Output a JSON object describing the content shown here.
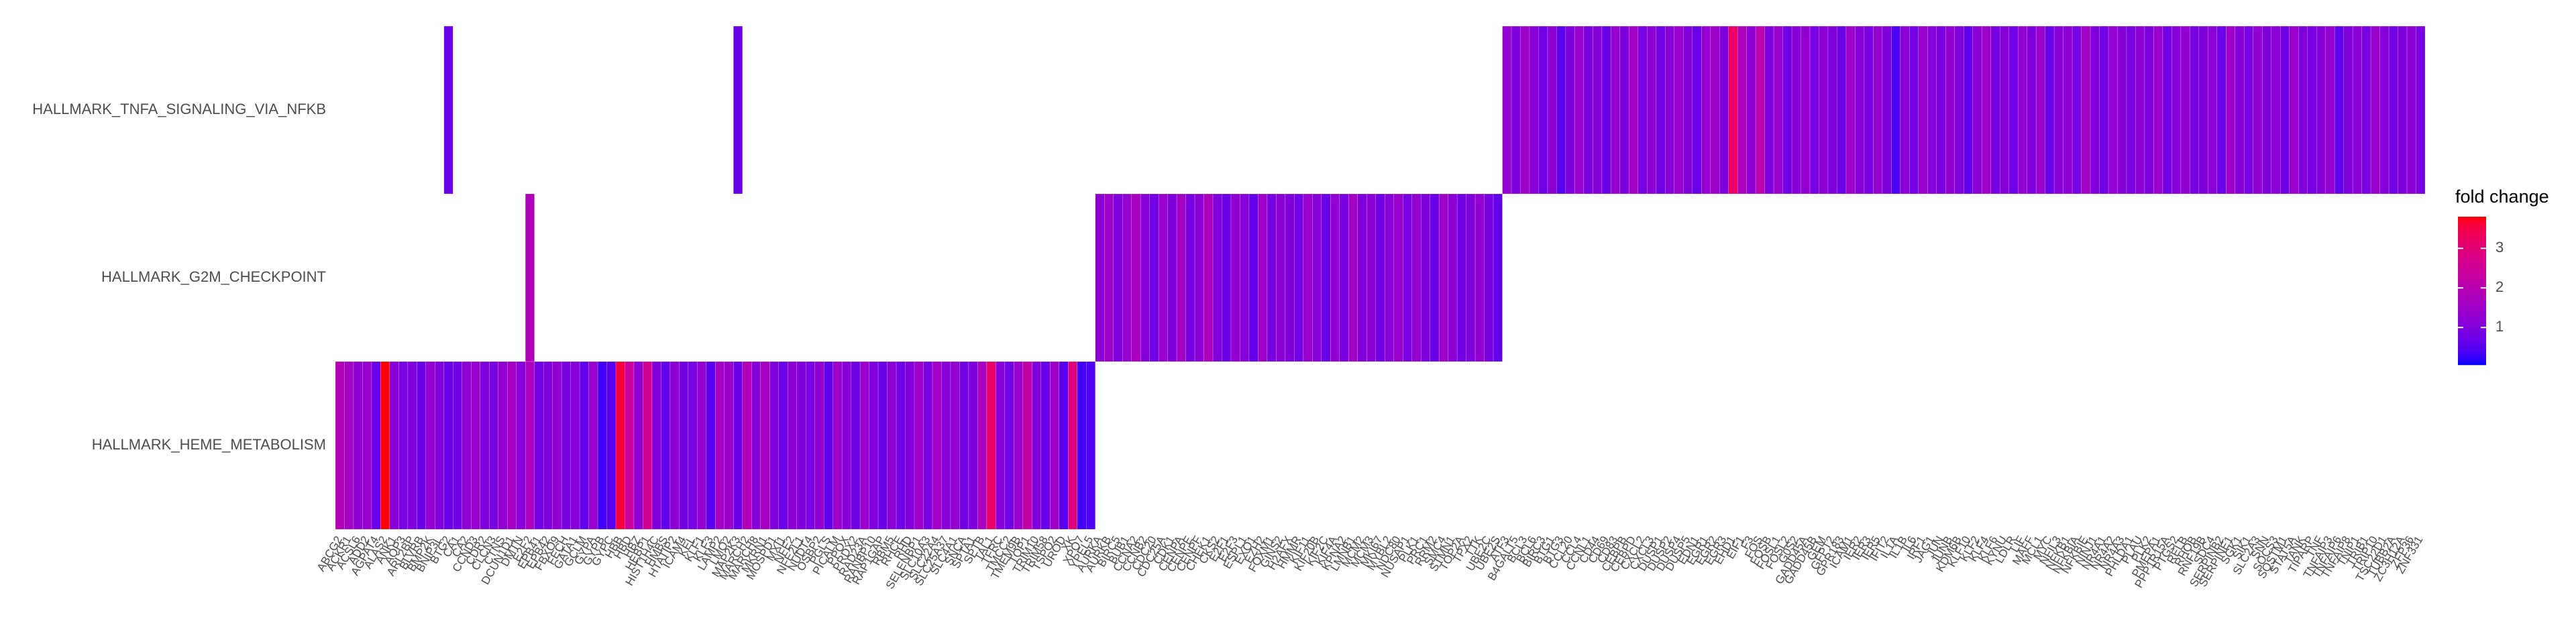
{
  "chart_data": {
    "type": "heatmap",
    "legend_title": "fold change",
    "clim": [
      0.05,
      3.8
    ],
    "cticks": [
      1,
      2,
      3
    ],
    "colors": [
      "#0000ff",
      "#ff0000"
    ],
    "categories": [
      "ABCG2",
      "ACKR1",
      "ACSL6",
      "ADD2",
      "AGPAT4",
      "ALAS2",
      "ANK1",
      "AQP3",
      "ARL2BP",
      "BLVRB",
      "BMP2K",
      "BNIP3L",
      "BTG2",
      "CA1",
      "CA2",
      "CCND3",
      "CDR2",
      "CLCN3",
      "CTNS",
      "DCUN1D1",
      "DMTN",
      "E2F2",
      "EPB41",
      "EPB42",
      "FBXO9",
      "FECH",
      "GATA1",
      "GCLM",
      "GYPA",
      "GYPB",
      "GYPC",
      "HBB",
      "HBD",
      "HBZ",
      "HEBP1",
      "HIST1H4C",
      "HMBS",
      "HTATIP2",
      "ICAM4",
      "KEL",
      "KLF1",
      "KLF3",
      "LAMP2",
      "LMO2",
      "MAP2K3",
      "MARCH2",
      "MARCH8",
      "MKRN1",
      "MOSPD1",
      "MXI1",
      "NFE2",
      "NFE2L1",
      "NUDT4",
      "OSBP2",
      "PGLS",
      "PICALM",
      "PPOX",
      "PRDX2",
      "RAD23A",
      "RANBP10",
      "RAP1GAP",
      "RBM5",
      "RHCE",
      "RHD",
      "SELENBP1",
      "SLC10A3",
      "SLC22A4",
      "SLC25A37",
      "SLC4A1",
      "SNCA",
      "SPTA1",
      "SPTB",
      "TAL1",
      "TFRC",
      "TMCC2",
      "TMEM9B",
      "TOP1",
      "TRIM10",
      "TRIM58",
      "TSPO2",
      "UROD",
      "XK",
      "XPO7",
      "YPEL5",
      "AURKA",
      "AURKB",
      "BIRC5",
      "BUB1",
      "CCNA2",
      "CCNB2",
      "CDC20",
      "CDC25A",
      "CDK1",
      "CENPA",
      "CENPE",
      "CENPF",
      "CHEK1",
      "CKS2",
      "E2F1",
      "E2F3",
      "ESPL1",
      "EXO1",
      "EZH2",
      "FOXM1",
      "GINS2",
      "H2AFX",
      "HMMR",
      "KIF11",
      "KIF20B",
      "KIF2C",
      "KIF4A",
      "KPNA2",
      "LMNB1",
      "MCM2",
      "MCM3",
      "MKI67",
      "MYBL2",
      "NDC80",
      "NUSAP1",
      "PLK1",
      "PRC1",
      "RRM2",
      "SMC4",
      "STMN1",
      "TOP2A",
      "TPX2",
      "TTK",
      "UBE2C",
      "UBE2S",
      "ATF3",
      "B4GALT5",
      "BCL3",
      "BCL6",
      "BIRC3",
      "BTG1",
      "BTG3",
      "CCL20",
      "CCL4",
      "CCNL1",
      "CD44",
      "CD69",
      "CD83",
      "CEBPB",
      "CEBPD",
      "CXCL2",
      "CXCL3",
      "DUSP1",
      "DUSP2",
      "DUSP4",
      "DUSP5",
      "EDN1",
      "EGR1",
      "EGR2",
      "EGR3",
      "EHD1",
      "EIF1",
      "F3",
      "FOS",
      "FOSB",
      "FOSL1",
      "FOSL2",
      "G0S2",
      "GADD45A",
      "GADD45B",
      "GEM",
      "GFPT2",
      "GPR183",
      "ICAM1",
      "IER2",
      "IER3",
      "IER5",
      "IFIT2",
      "IL1A",
      "IL1B",
      "IL6",
      "IRF1",
      "JAG1",
      "JUN",
      "JUNB",
      "KDM6B",
      "KLF10",
      "KLF2",
      "KLF4",
      "KLF6",
      "KYNU",
      "LDLR",
      "LIF",
      "MAFF",
      "MCL1",
      "MYC",
      "NFIL3",
      "NFKB1",
      "NFKBIA",
      "NFKBIE",
      "NINJ1",
      "NR4A1",
      "NR4A2",
      "NR4A3",
      "PHLDA1",
      "PLAU",
      "PLK2",
      "PMEPA1",
      "PPP1R15A",
      "PTGS2",
      "RELB",
      "RHOB",
      "RNF19B",
      "SDC4",
      "SERPINB2",
      "SERPINE1",
      "SGK1",
      "SIK1",
      "SLC2A3",
      "SNN",
      "SOCS3",
      "SQSTM1",
      "STAT5A",
      "TANK",
      "TIPARP",
      "TNF",
      "TNFAIP3",
      "TNFAIP6",
      "TNFAIP8",
      "TNIP1",
      "TRIB1",
      "TRIP10",
      "TSC22D1",
      "TUBB2A",
      "ZC3H12A",
      "ZFP36",
      "ZNF331"
    ],
    "series": [
      {
        "name": "HALLMARK_TNFA_SIGNALING_VIA_NFKB",
        "values": [
          null,
          null,
          null,
          null,
          null,
          null,
          null,
          null,
          null,
          null,
          null,
          null,
          0.7,
          null,
          null,
          null,
          null,
          null,
          null,
          null,
          null,
          null,
          null,
          null,
          null,
          null,
          null,
          null,
          null,
          null,
          null,
          null,
          null,
          null,
          null,
          null,
          null,
          null,
          null,
          null,
          null,
          null,
          null,
          null,
          0.7,
          null,
          null,
          null,
          null,
          null,
          null,
          null,
          null,
          null,
          null,
          null,
          null,
          null,
          null,
          null,
          null,
          null,
          null,
          null,
          null,
          null,
          null,
          null,
          null,
          null,
          null,
          null,
          null,
          null,
          null,
          null,
          null,
          null,
          null,
          null,
          null,
          null,
          null,
          null,
          null,
          null,
          null,
          null,
          null,
          null,
          null,
          null,
          null,
          null,
          null,
          null,
          null,
          null,
          null,
          null,
          null,
          null,
          null,
          null,
          null,
          null,
          null,
          null,
          null,
          null,
          null,
          null,
          null,
          null,
          null,
          null,
          null,
          null,
          null,
          null,
          null,
          null,
          null,
          null,
          null,
          null,
          null,
          null,
          null,
          1.3,
          1.0,
          1.5,
          1.1,
          0.8,
          1.2,
          0.5,
          1.0,
          1.4,
          0.9,
          1.1,
          0.7,
          1.3,
          1.0,
          1.6,
          0.9,
          1.2,
          0.8,
          1.1,
          1.4,
          1.0,
          0.7,
          1.3,
          1.5,
          1.0,
          3.2,
          1.8,
          1.2,
          2.1,
          1.0,
          1.4,
          0.8,
          1.1,
          1.3,
          0.9,
          1.2,
          1.0,
          0.7,
          1.5,
          1.1,
          0.9,
          1.3,
          1.0,
          0.4,
          1.2,
          0.8,
          1.4,
          1.1,
          0.9,
          1.3,
          1.0,
          0.6,
          1.2,
          1.5,
          0.9,
          1.1,
          0.8,
          1.3,
          1.0,
          1.4,
          0.7,
          1.1,
          1.2,
          0.9,
          1.6,
          1.0,
          0.8,
          1.3,
          1.1,
          0.9,
          1.2,
          1.0,
          1.4,
          0.8,
          1.1,
          1.3,
          0.9,
          1.0,
          1.2,
          0.7,
          1.5,
          1.1,
          0.9,
          1.3,
          1.0,
          1.2,
          0.8,
          1.4,
          1.0,
          0.9,
          1.1,
          1.3,
          0.6,
          1.0,
          1.2,
          0.9,
          1.4,
          1.1,
          0.8,
          1.0,
          1.2,
          0.9
        ]
      },
      {
        "name": "HALLMARK_G2M_CHECKPOINT",
        "values": [
          null,
          null,
          null,
          null,
          null,
          null,
          null,
          null,
          null,
          null,
          null,
          null,
          null,
          null,
          null,
          null,
          null,
          null,
          null,
          null,
          null,
          1.8,
          null,
          null,
          null,
          null,
          null,
          null,
          null,
          null,
          null,
          null,
          null,
          null,
          null,
          null,
          null,
          null,
          null,
          null,
          null,
          null,
          null,
          null,
          null,
          null,
          null,
          null,
          null,
          null,
          null,
          null,
          null,
          null,
          null,
          null,
          null,
          null,
          null,
          null,
          null,
          null,
          null,
          null,
          null,
          null,
          null,
          null,
          null,
          null,
          null,
          null,
          null,
          null,
          null,
          null,
          null,
          null,
          null,
          null,
          null,
          null,
          null,
          null,
          1.2,
          1.5,
          1.0,
          1.3,
          1.7,
          1.1,
          0.8,
          1.4,
          1.0,
          1.6,
          0.9,
          1.2,
          1.8,
          1.0,
          0.7,
          1.3,
          1.1,
          0.6,
          1.5,
          0.9,
          1.2,
          1.0,
          0.8,
          1.4,
          1.1,
          0.7,
          1.3,
          0.9,
          1.6,
          1.0,
          1.2,
          0.8,
          1.1,
          1.4,
          0.9,
          1.3,
          1.0,
          0.7,
          1.5,
          1.2,
          0.8,
          1.0,
          1.3,
          0.9,
          0.6,
          null,
          null,
          null,
          null,
          null,
          null,
          null,
          null,
          null,
          null,
          null,
          null,
          null,
          null,
          null,
          null,
          null,
          null,
          null,
          null,
          null,
          null,
          null,
          null,
          null,
          null,
          null,
          null,
          null,
          null,
          null,
          null,
          null,
          null,
          null,
          null,
          null,
          null,
          null,
          null,
          null,
          null,
          null,
          null,
          null,
          null,
          null,
          null,
          null,
          null,
          null,
          null,
          null,
          null,
          null,
          null,
          null,
          null,
          null,
          null,
          null,
          null,
          null,
          null,
          null,
          null,
          null,
          null,
          null,
          null,
          null,
          null,
          null,
          null,
          null,
          null,
          null,
          null,
          null,
          null,
          null,
          null,
          null,
          null,
          null,
          null,
          null,
          null,
          null,
          null,
          null,
          null,
          null,
          null,
          null,
          null,
          null,
          null,
          null,
          null,
          null,
          null
        ]
      },
      {
        "name": "HALLMARK_HEME_METABOLISM",
        "values": [
          1.9,
          1.6,
          1.2,
          1.4,
          0.7,
          3.8,
          1.1,
          0.9,
          1.0,
          0.7,
          1.3,
          1.0,
          0.7,
          0.8,
          1.2,
          1.4,
          1.0,
          0.9,
          1.3,
          1.6,
          1.1,
          1.8,
          0.8,
          1.0,
          1.3,
          0.9,
          1.1,
          0.6,
          1.4,
          0.3,
          0.5,
          3.6,
          2.4,
          1.2,
          2.6,
          1.0,
          0.6,
          1.2,
          0.8,
          0.9,
          1.3,
          0.5,
          1.6,
          1.4,
          0.7,
          1.9,
          1.1,
          1.7,
          1.0,
          0.7,
          1.2,
          1.0,
          0.9,
          1.3,
          0.6,
          1.5,
          1.1,
          0.8,
          1.4,
          1.0,
          0.7,
          1.2,
          0.8,
          1.0,
          1.5,
          0.9,
          1.6,
          1.1,
          1.3,
          0.8,
          1.0,
          1.7,
          3.2,
          1.1,
          0.8,
          1.4,
          2.2,
          1.0,
          0.7,
          1.5,
          0.5,
          2.9,
          0.3,
          0.4,
          null,
          null,
          null,
          null,
          null,
          null,
          null,
          null,
          null,
          null,
          null,
          null,
          null,
          null,
          null,
          null,
          null,
          null,
          null,
          null,
          null,
          null,
          null,
          null,
          null,
          null,
          null,
          null,
          null,
          null,
          null,
          null,
          null,
          null,
          null,
          null,
          null,
          null,
          null,
          null,
          null,
          null,
          null,
          null,
          null,
          null,
          null,
          null,
          null,
          null,
          null,
          null,
          null,
          null,
          null,
          null,
          null,
          null,
          null,
          null,
          null,
          null,
          null,
          null,
          null,
          null,
          null,
          null,
          null,
          null,
          null,
          null,
          null,
          null,
          null,
          null,
          null,
          null,
          null,
          null,
          null,
          null,
          null,
          null,
          null,
          null,
          null,
          null,
          null,
          null,
          null,
          null,
          null,
          null,
          null,
          null,
          null,
          null,
          null,
          null,
          null,
          null,
          null,
          null,
          null,
          null,
          null,
          null,
          null,
          null,
          null,
          null,
          null,
          null,
          null,
          null,
          null,
          null,
          null,
          null,
          null,
          null,
          null,
          null,
          null,
          null,
          null,
          null,
          null,
          null,
          null,
          null,
          null,
          null,
          null,
          null,
          null,
          null,
          null,
          null,
          null,
          null,
          null,
          null,
          null,
          null,
          null
        ]
      }
    ]
  }
}
